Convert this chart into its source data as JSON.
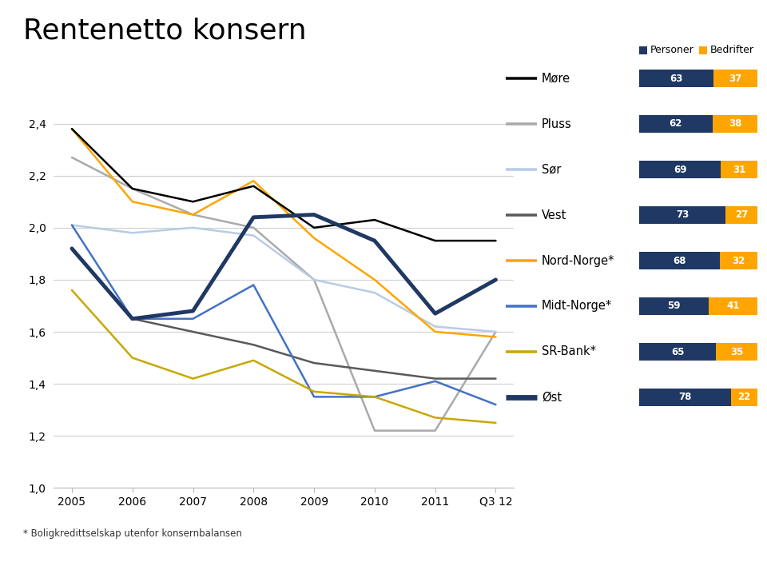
{
  "title": "Rentenetto konsern",
  "x_labels": [
    "2005",
    "2006",
    "2007",
    "2008",
    "2009",
    "2010",
    "2011",
    "Q3 12"
  ],
  "x_numeric": [
    0,
    1,
    2,
    3,
    4,
    5,
    6,
    7
  ],
  "ylim": [
    1.0,
    2.5
  ],
  "yticks": [
    1.0,
    1.2,
    1.4,
    1.6,
    1.8,
    2.0,
    2.2,
    2.4
  ],
  "series": [
    {
      "name": "Møre",
      "color": "#000000",
      "linewidth": 1.8,
      "zorder": 5,
      "values": [
        2.38,
        2.15,
        2.1,
        2.16,
        2.0,
        2.03,
        1.95,
        1.95
      ]
    },
    {
      "name": "Pluss",
      "color": "#aaaaaa",
      "linewidth": 1.8,
      "zorder": 4,
      "values": [
        2.27,
        2.15,
        2.05,
        2.0,
        1.8,
        1.22,
        1.22,
        1.6
      ]
    },
    {
      "name": "Sør",
      "color": "#b8cce4",
      "linewidth": 1.8,
      "zorder": 4,
      "values": [
        2.01,
        1.98,
        2.0,
        1.97,
        1.8,
        1.75,
        1.62,
        1.6
      ]
    },
    {
      "name": "Vest",
      "color": "#595959",
      "linewidth": 1.8,
      "zorder": 4,
      "values": [
        1.92,
        1.65,
        1.6,
        1.55,
        1.48,
        1.45,
        1.42,
        1.42
      ]
    },
    {
      "name": "Nord-Norge*",
      "color": "#ffa500",
      "linewidth": 1.8,
      "zorder": 4,
      "values": [
        2.38,
        2.1,
        2.05,
        2.18,
        1.96,
        1.8,
        1.6,
        1.58
      ]
    },
    {
      "name": "Midt-Norge*",
      "color": "#4472c4",
      "linewidth": 1.8,
      "zorder": 4,
      "values": [
        2.01,
        1.65,
        1.65,
        1.78,
        1.35,
        1.35,
        1.41,
        1.32
      ]
    },
    {
      "name": "SR-Bank*",
      "color": "#c8a800",
      "linewidth": 1.8,
      "zorder": 4,
      "values": [
        1.76,
        1.5,
        1.42,
        1.49,
        1.37,
        1.35,
        1.27,
        1.25
      ]
    },
    {
      "name": "Øst",
      "color": "#1f3864",
      "linewidth": 3.5,
      "zorder": 6,
      "values": [
        1.92,
        1.65,
        1.68,
        2.04,
        2.05,
        1.95,
        1.67,
        1.8
      ]
    }
  ],
  "legend_items": [
    {
      "name": "Møre",
      "color": "#000000",
      "lw": 1.8
    },
    {
      "name": "Pluss",
      "color": "#aaaaaa",
      "lw": 1.8
    },
    {
      "name": "Sør",
      "color": "#b8cce4",
      "lw": 1.8
    },
    {
      "name": "Vest",
      "color": "#595959",
      "lw": 1.8
    },
    {
      "name": "Nord-Norge*",
      "color": "#ffa500",
      "lw": 1.8
    },
    {
      "name": "Midt-Norge*",
      "color": "#4472c4",
      "lw": 1.8
    },
    {
      "name": "SR-Bank*",
      "color": "#c8a800",
      "lw": 1.8
    },
    {
      "name": "Øst",
      "color": "#1f3864",
      "lw": 3.5
    }
  ],
  "bar_data": [
    {
      "persons": 63,
      "bedrifter": 37
    },
    {
      "persons": 62,
      "bedrifter": 38
    },
    {
      "persons": 69,
      "bedrifter": 31
    },
    {
      "persons": 73,
      "bedrifter": 27
    },
    {
      "persons": 68,
      "bedrifter": 32
    },
    {
      "persons": 59,
      "bedrifter": 41
    },
    {
      "persons": 65,
      "bedrifter": 35
    },
    {
      "persons": 78,
      "bedrifter": 22
    }
  ],
  "persons_color": "#1f3864",
  "bedrifter_color": "#ffa500",
  "bar_text_color": "#ffffff",
  "persons_label": "Personer",
  "bedrifter_label": "Bedrifter",
  "footnote": "* Boligkredittselskap utenfor konsernbalansen",
  "background_color": "#ffffff",
  "plot_bg_color": "#ffffff",
  "grid_color": "#d0d0d0",
  "title_fontsize": 26,
  "axis_label_fontsize": 10
}
